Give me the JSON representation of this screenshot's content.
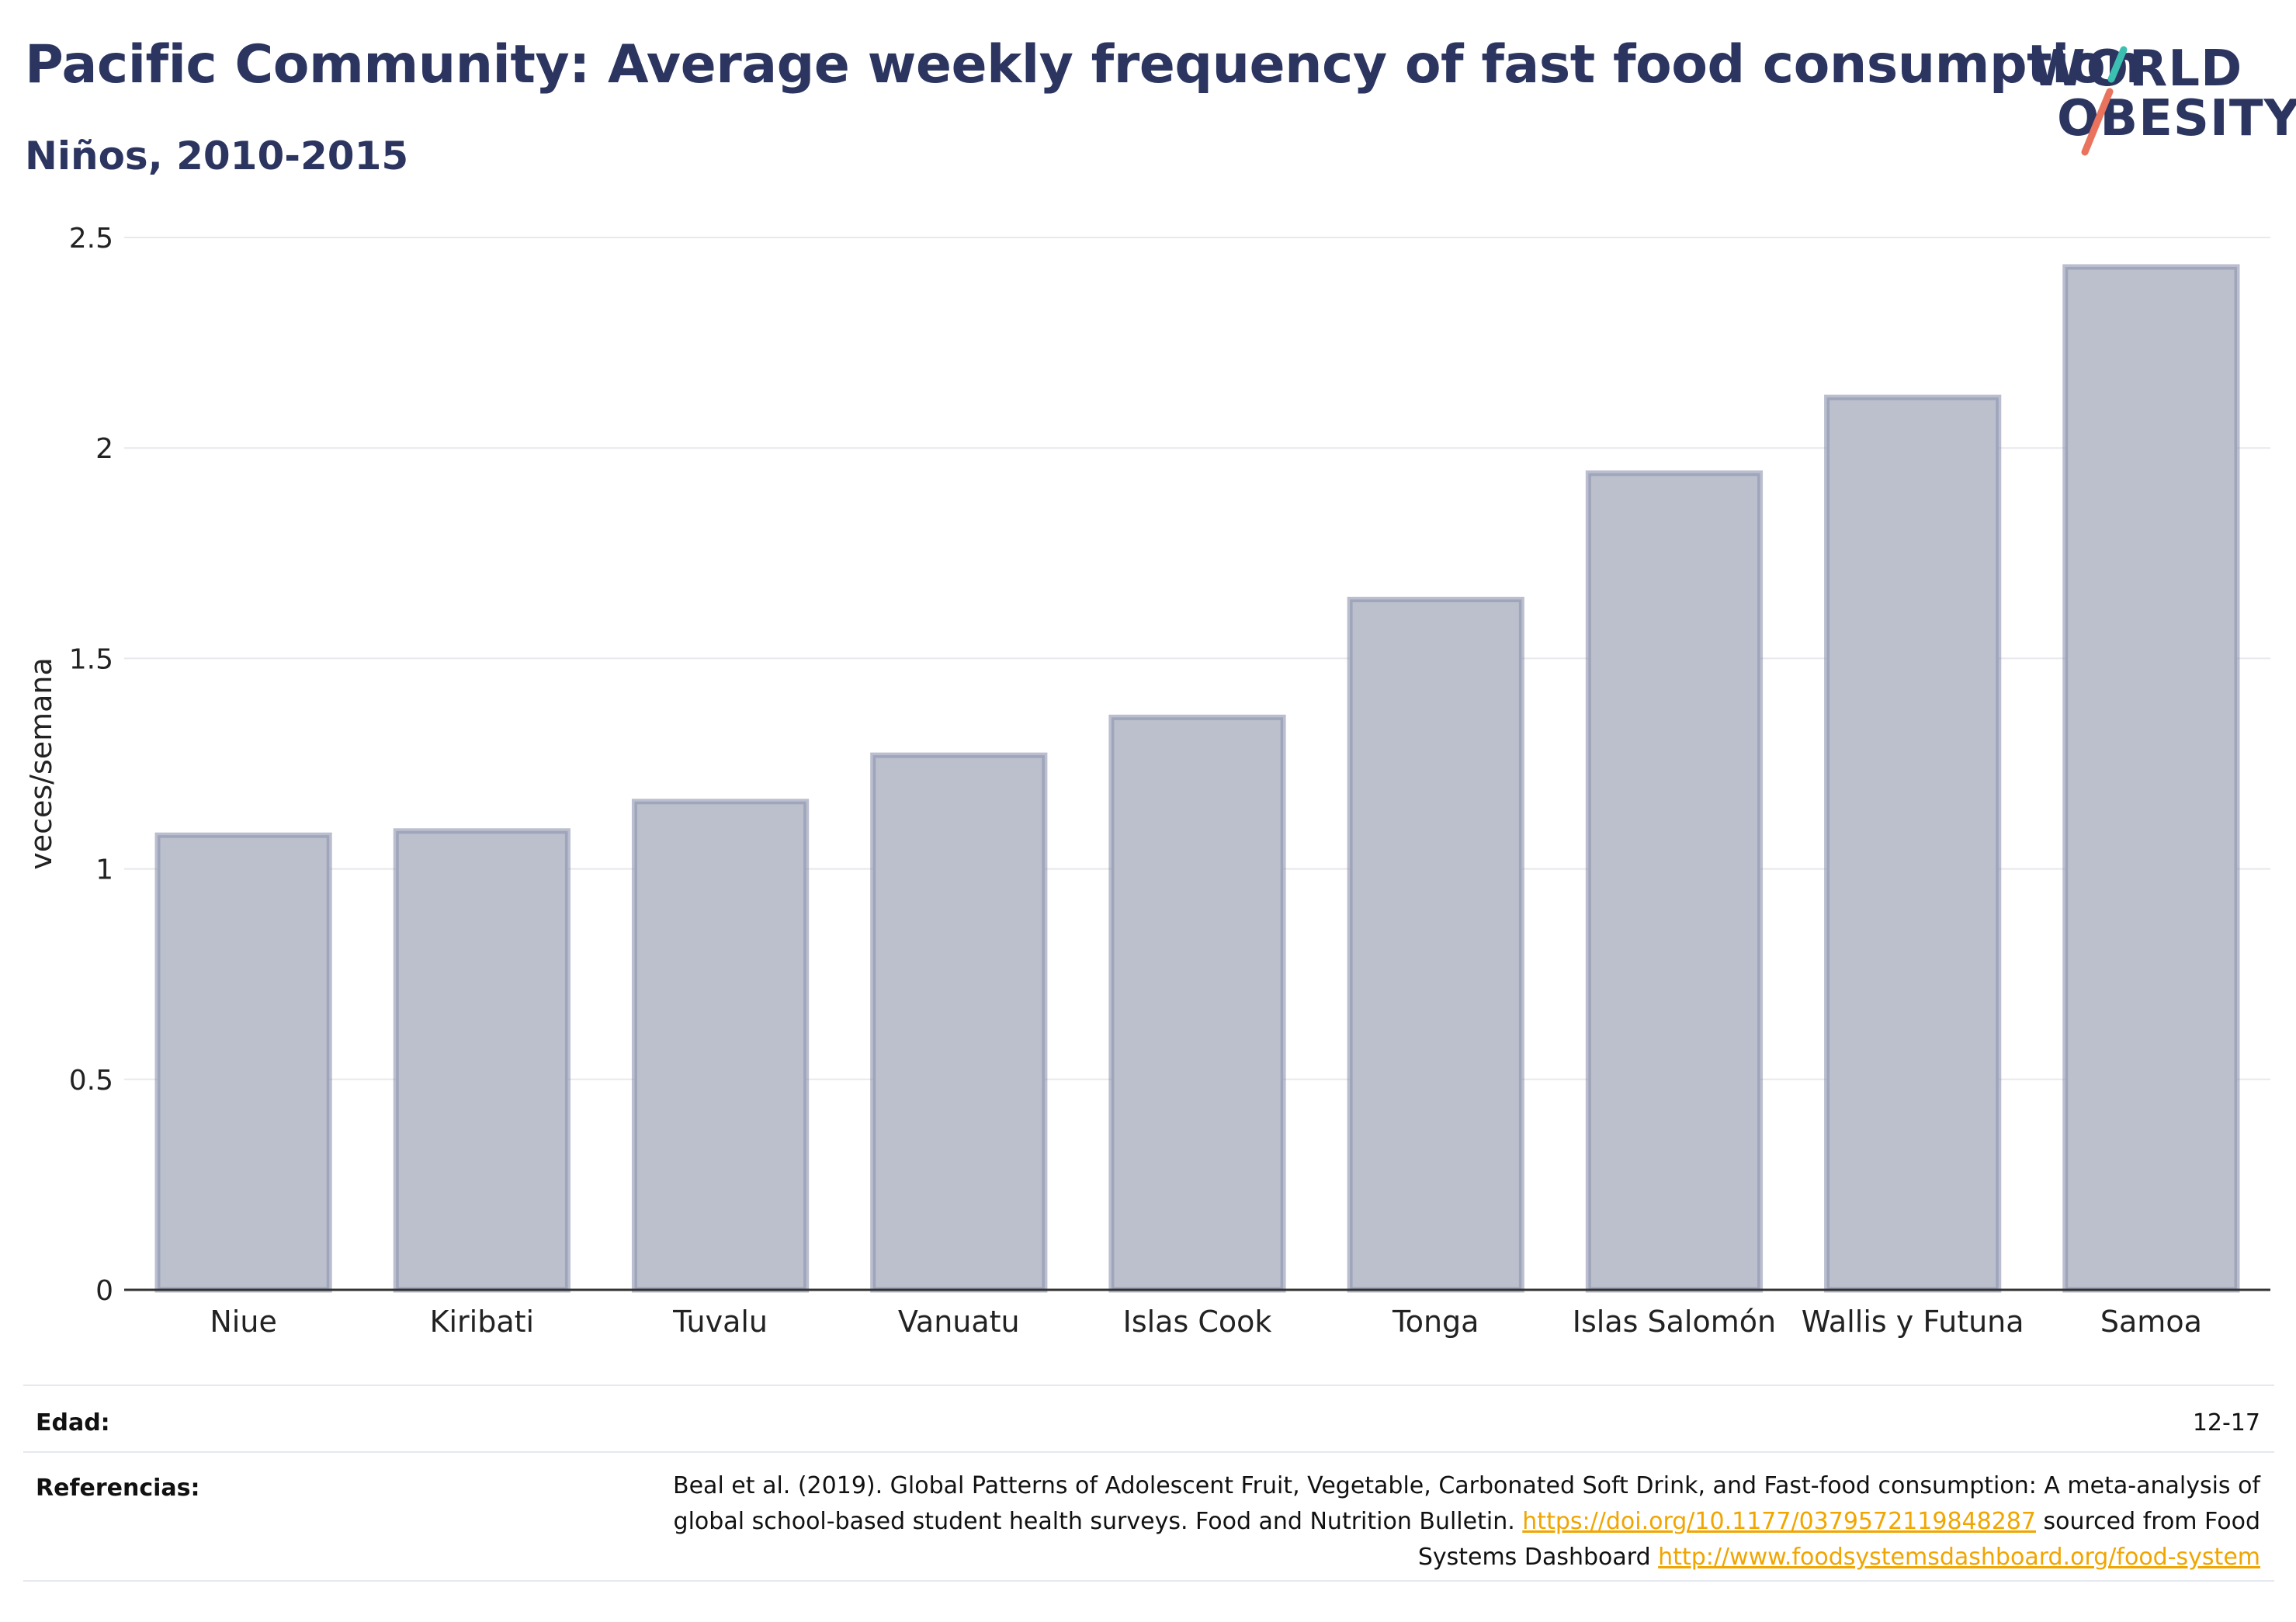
{
  "header": {
    "title": "Pacific Community: Average weekly frequency of fast food consumption",
    "subtitle": "Niños, 2010-2015"
  },
  "logo": {
    "line1": "WORLD",
    "line2": "OBESITY",
    "colors": {
      "text": "#2b3560",
      "slash_top": "#3bbfb0",
      "slash_bottom": "#e9735d"
    }
  },
  "chart_data": {
    "type": "bar",
    "categories": [
      "Niue",
      "Kiribati",
      "Tuvalu",
      "Vanuatu",
      "Islas Cook",
      "Tonga",
      "Islas Salomón",
      "Wallis y Futuna",
      "Samoa"
    ],
    "values": [
      1.08,
      1.09,
      1.16,
      1.27,
      1.36,
      1.64,
      1.94,
      2.12,
      2.43
    ],
    "title": "",
    "xlabel": "",
    "ylabel": "veces/semana",
    "ylim": [
      0,
      2.5
    ],
    "yticks": [
      "0",
      "0.5",
      "1",
      "1.5",
      "2",
      "2.5"
    ],
    "grid": true,
    "colors": {
      "bar_fill": "#bcc0cd",
      "bar_stroke": "#8c93ad"
    }
  },
  "footer": {
    "edad_label": "Edad:",
    "edad_value": "12-17",
    "ref_label": "Referencias:",
    "ref_text_1": "Beal et al. (2019). Global Patterns of Adolescent Fruit, Vegetable, Carbonated Soft Drink, and Fast-food consumption: A meta-analysis of global school-based student health surveys. Food and Nutrition Bulletin. ",
    "ref_link_1": "https://doi.org/10.1177/0379572119848287",
    "ref_text_2": " sourced from Food Systems Dashboard ",
    "ref_link_2": "http://www.foodsystemsdashboard.org/food-system"
  }
}
